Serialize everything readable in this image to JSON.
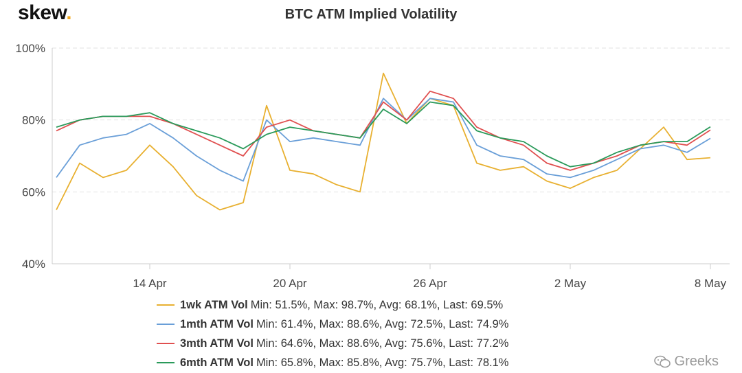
{
  "brand": {
    "name": "skew",
    "dot": "."
  },
  "watermark": {
    "text": "Greeks",
    "icon": "wechat-bubbles-icon"
  },
  "chart_data": {
    "type": "line",
    "title": "BTC ATM Implied Volatility",
    "xlabel": "",
    "ylabel": "",
    "ylim": [
      40,
      100
    ],
    "yticks": [
      "40%",
      "60%",
      "80%",
      "100%"
    ],
    "ytick_values": [
      40,
      60,
      80,
      100
    ],
    "xlim": [
      "2020-04-10",
      "2020-05-08"
    ],
    "xticks": [
      "14 Apr",
      "20 Apr",
      "26 Apr",
      "2 May",
      "8 May"
    ],
    "xtick_values": [
      "2020-04-14",
      "2020-04-20",
      "2020-04-26",
      "2020-05-02",
      "2020-05-08"
    ],
    "grid": true,
    "legend_position": "bottom",
    "x": [
      "2020-04-10",
      "2020-04-11",
      "2020-04-12",
      "2020-04-13",
      "2020-04-14",
      "2020-04-15",
      "2020-04-16",
      "2020-04-17",
      "2020-04-18",
      "2020-04-19",
      "2020-04-20",
      "2020-04-21",
      "2020-04-22",
      "2020-04-23",
      "2020-04-24",
      "2020-04-25",
      "2020-04-26",
      "2020-04-27",
      "2020-04-28",
      "2020-04-29",
      "2020-04-30",
      "2020-05-01",
      "2020-05-02",
      "2020-05-03",
      "2020-05-04",
      "2020-05-05",
      "2020-05-06",
      "2020-05-07",
      "2020-05-08"
    ],
    "series": [
      {
        "name": "1wk ATM Vol",
        "color": "#e8b030",
        "stats": "Min: 51.5%, Max: 98.7%, Avg: 68.1%, Last: 69.5%",
        "values": [
          55,
          68,
          64,
          66,
          73,
          67,
          59,
          55,
          57,
          84,
          66,
          65,
          62,
          60,
          93,
          79,
          86,
          84,
          68,
          66,
          67,
          63,
          61,
          64,
          66,
          72,
          78,
          69,
          69.5
        ]
      },
      {
        "name": "1mth ATM Vol",
        "color": "#6a9fd8",
        "stats": "Min: 61.4%, Max: 88.6%, Avg: 72.5%, Last: 74.9%",
        "values": [
          64,
          73,
          75,
          76,
          79,
          75,
          70,
          66,
          63,
          80,
          74,
          75,
          74,
          73,
          86,
          80,
          86,
          85,
          73,
          70,
          69,
          65,
          64,
          66,
          69,
          72,
          73,
          71,
          74.9
        ]
      },
      {
        "name": "3mth ATM Vol",
        "color": "#e05050",
        "stats": "Min: 64.6%, Max: 88.6%, Avg: 75.6%, Last: 77.2%",
        "values": [
          77,
          80,
          81,
          81,
          81,
          79,
          76,
          73,
          70,
          78,
          80,
          77,
          76,
          75,
          85,
          80,
          88,
          86,
          78,
          75,
          73,
          68,
          66,
          68,
          70,
          73,
          74,
          73,
          77.2
        ]
      },
      {
        "name": "6mth ATM Vol",
        "color": "#2a9a5a",
        "stats": "Min: 65.8%, Max: 85.8%, Avg: 75.7%, Last: 78.1%",
        "values": [
          78,
          80,
          81,
          81,
          82,
          79,
          77,
          75,
          72,
          76,
          78,
          77,
          76,
          75,
          83,
          79,
          85,
          84,
          77,
          75,
          74,
          70,
          67,
          68,
          71,
          73,
          74,
          74,
          78.1
        ]
      }
    ]
  }
}
